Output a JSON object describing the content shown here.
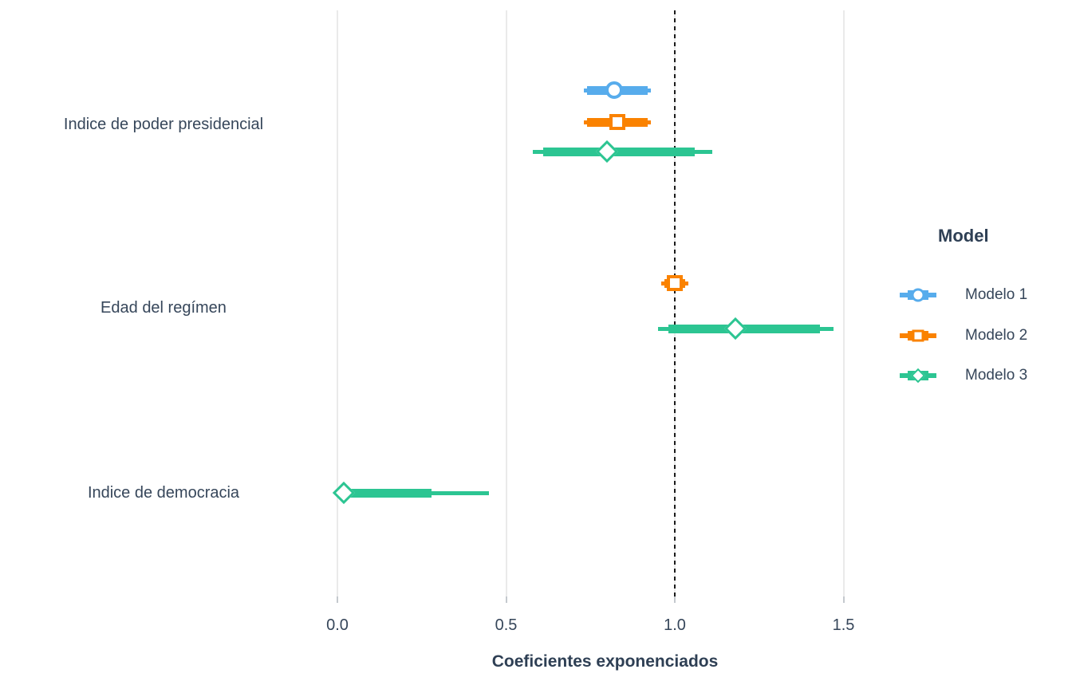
{
  "chart_data": {
    "type": "forest",
    "title": "",
    "xlabel": "Coeficientes exponenciados",
    "x_ticks": [
      "0.0",
      "0.5",
      "1.0",
      "1.5"
    ],
    "x_tick_values": [
      0,
      0.5,
      1.0,
      1.5
    ],
    "xlim": [
      -0.03,
      1.62
    ],
    "reference_line": 1.0,
    "grid": "vertical-major-only",
    "legend_position": "right",
    "legend": {
      "title": "Model",
      "items": [
        {
          "label": "Modelo 1",
          "shape": "circle",
          "color": "#57ACEC"
        },
        {
          "label": "Modelo 2",
          "shape": "square",
          "color": "#FA8200"
        },
        {
          "label": "Modelo 3",
          "shape": "diamond",
          "color": "#2CC592"
        }
      ]
    },
    "groups": [
      {
        "label": "Indice de poder presidencial",
        "estimates": [
          {
            "model": "Modelo 1",
            "shape": "circle",
            "estimate": 0.82,
            "inner_ci": [
              0.74,
              0.92
            ],
            "outer_ci": [
              0.73,
              0.93
            ]
          },
          {
            "model": "Modelo 2",
            "shape": "square",
            "estimate": 0.83,
            "inner_ci": [
              0.74,
              0.92
            ],
            "outer_ci": [
              0.73,
              0.93
            ]
          },
          {
            "model": "Modelo 3",
            "shape": "diamond",
            "estimate": 0.8,
            "inner_ci": [
              0.61,
              1.06
            ],
            "outer_ci": [
              0.58,
              1.11
            ]
          }
        ]
      },
      {
        "label": "Edad del regímen",
        "estimates": [
          {
            "model": "Modelo 2",
            "shape": "square",
            "estimate": 1.0,
            "inner_ci": [
              0.97,
              1.03
            ],
            "outer_ci": [
              0.96,
              1.04
            ]
          },
          {
            "model": "Modelo 3",
            "shape": "diamond",
            "estimate": 1.18,
            "inner_ci": [
              0.98,
              1.43
            ],
            "outer_ci": [
              0.95,
              1.47
            ]
          }
        ]
      },
      {
        "label": "Indice de democracia",
        "estimates": [
          {
            "model": "Modelo 3",
            "shape": "diamond",
            "estimate": 0.02,
            "inner_ci": [
              0.01,
              0.28
            ],
            "outer_ci": [
              0.01,
              0.45
            ]
          }
        ]
      }
    ],
    "style_colors": {
      "text": "#36465A",
      "title_text": "#2E3F54",
      "gridline": "#EAEAEA",
      "tick": "#C4C9CE",
      "reference_line": "#1B1B1B"
    }
  }
}
